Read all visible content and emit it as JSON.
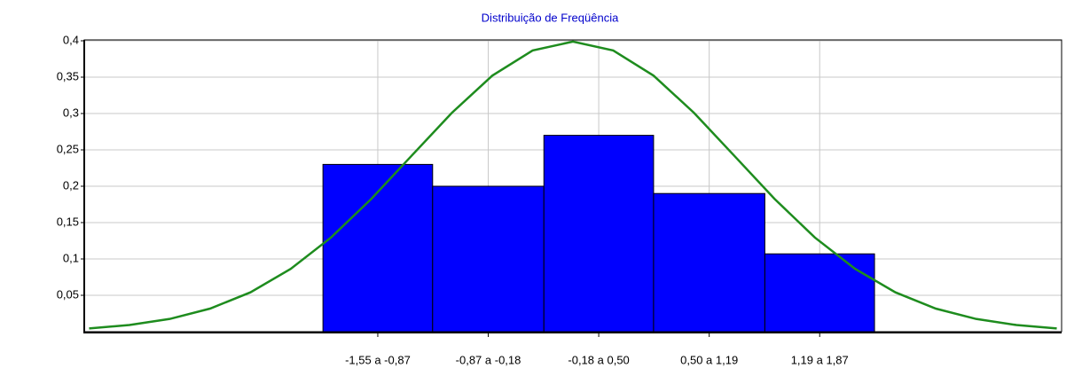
{
  "chart_data": {
    "type": "histogram",
    "title": "Distribuição de Freqüência",
    "bins": [
      -1.55,
      -0.87,
      -0.18,
      0.5,
      1.19,
      1.87
    ],
    "values": [
      0.23,
      0.2,
      0.27,
      0.19,
      0.107
    ],
    "categories": [
      "-1,55 a -0,87",
      "-0,87 a -0,18",
      "-0,18 a 0,50",
      "0,50 a 1,19",
      "1,19 a 1,87"
    ],
    "color": "#0000ff",
    "xlim": [
      -3.03,
      3.03
    ],
    "ylim": [
      0,
      0.4
    ],
    "yticks": [
      {
        "value": 0.05,
        "label": "0,05"
      },
      {
        "value": 0.1,
        "label": "0,1"
      },
      {
        "value": 0.15,
        "label": "0,15"
      },
      {
        "value": 0.2,
        "label": "0,2"
      },
      {
        "value": 0.25,
        "label": "0,25"
      },
      {
        "value": 0.3,
        "label": "0,3"
      },
      {
        "value": 0.35,
        "label": "0,35"
      },
      {
        "value": 0.4,
        "label": "0,4"
      }
    ],
    "grid": true,
    "curve": {
      "color": "#1e8c1e",
      "x": [
        -3,
        -2.75,
        -2.5,
        -2.25,
        -2,
        -1.75,
        -1.5,
        -1.25,
        -1,
        -0.75,
        -0.5,
        -0.25,
        0,
        0.25,
        0.5,
        0.75,
        1,
        1.25,
        1.5,
        1.75,
        2,
        2.25,
        2.5,
        2.75,
        3
      ],
      "values": [
        0.0044,
        0.0091,
        0.0175,
        0.0317,
        0.054,
        0.0863,
        0.1295,
        0.1826,
        0.242,
        0.3011,
        0.3521,
        0.3867,
        0.3989,
        0.3867,
        0.3521,
        0.3011,
        0.242,
        0.1826,
        0.1295,
        0.0863,
        0.054,
        0.0317,
        0.0175,
        0.0091,
        0.0044
      ]
    }
  }
}
